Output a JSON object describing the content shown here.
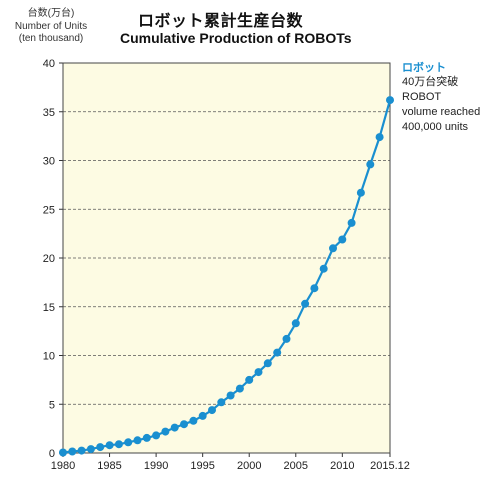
{
  "chart_data": {
    "type": "line",
    "title": "ロボット累計生産台数",
    "subtitle": "Cumulative Production of ROBOTs",
    "ylabel_lines": [
      "台数(万台)",
      "Number of Units",
      "(ten thousand)"
    ],
    "xlabel": "",
    "ylim": [
      0,
      40
    ],
    "yticks": [
      0,
      5,
      10,
      15,
      20,
      25,
      30,
      35,
      40
    ],
    "xticks": [
      "1980",
      "1985",
      "1990",
      "1995",
      "2000",
      "2005",
      "2010",
      "2015.12"
    ],
    "grid": "horizontal dashed",
    "colors": {
      "line": "#1a8fd0",
      "marker": "#1a8fd0",
      "plot_bg": "#fdfbe3",
      "annotation_title": "#1a8fd0"
    },
    "series": [
      {
        "x": [
          1980,
          1981,
          1982,
          1983,
          1984,
          1985,
          1986,
          1987,
          1988,
          1989,
          1990,
          1991,
          1992,
          1993,
          1994,
          1995,
          1996,
          1997,
          1998,
          1999,
          2000,
          2001,
          2002,
          2003,
          2004,
          2005,
          2006,
          2007,
          2008,
          2009,
          2010,
          2011,
          2012,
          2013,
          2014,
          2015.12
        ],
        "values": [
          0.05,
          0.15,
          0.25,
          0.4,
          0.6,
          0.8,
          0.9,
          1.1,
          1.3,
          1.55,
          1.8,
          2.2,
          2.6,
          2.95,
          3.3,
          3.8,
          4.4,
          5.2,
          5.9,
          6.6,
          7.5,
          8.3,
          9.2,
          10.3,
          11.7,
          13.3,
          15.3,
          16.9,
          18.9,
          21.0,
          21.9,
          23.6,
          26.7,
          29.6,
          32.4,
          36.2
        ]
      }
    ],
    "annotation": {
      "title": "ロボット",
      "lines": [
        "40万台突破",
        "ROBOT",
        "volume reached",
        "400,000 units"
      ]
    }
  }
}
